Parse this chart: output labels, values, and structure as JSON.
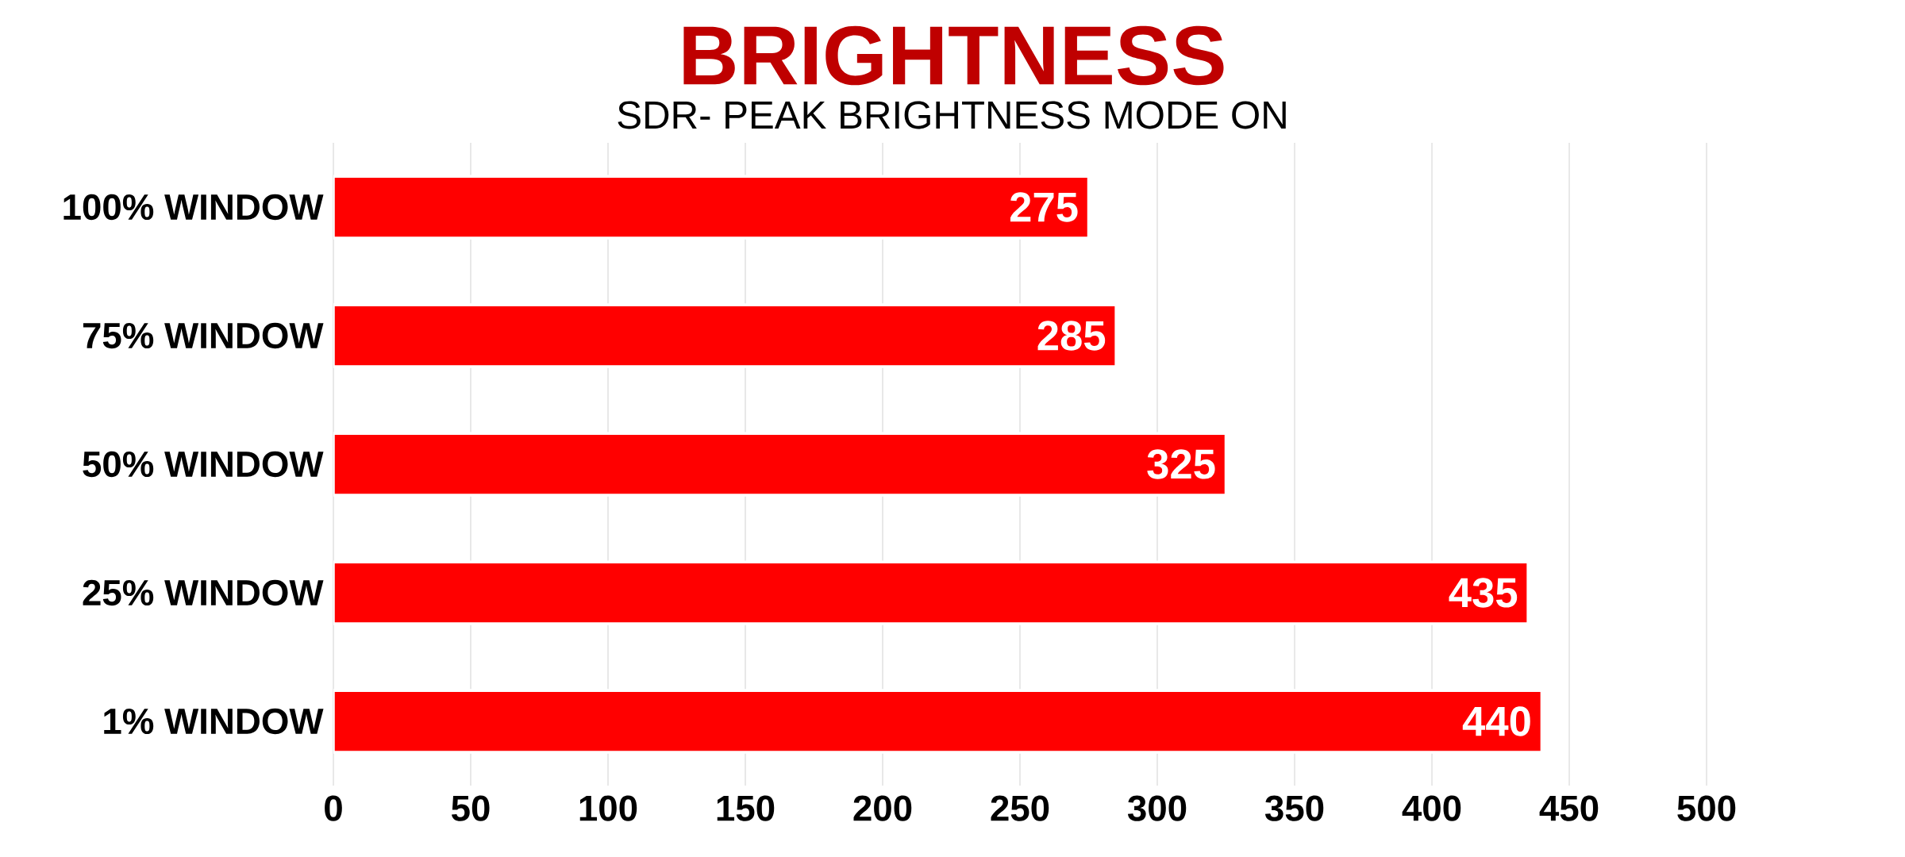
{
  "chart_data": {
    "type": "bar",
    "orientation": "horizontal",
    "title": "BRIGHTNESS",
    "subtitle": "SDR- PEAK BRIGHTNESS MODE ON",
    "categories": [
      "100% WINDOW",
      "75% WINDOW",
      "50% WINDOW",
      "25% WINDOW",
      "1% WINDOW"
    ],
    "values": [
      275,
      285,
      325,
      435,
      440
    ],
    "color": "#ff0000",
    "xlim": [
      0,
      500
    ],
    "xticks": [
      0,
      50,
      100,
      150,
      200,
      250,
      300,
      350,
      400,
      450,
      500
    ],
    "grid": "x",
    "data_labels": true
  }
}
